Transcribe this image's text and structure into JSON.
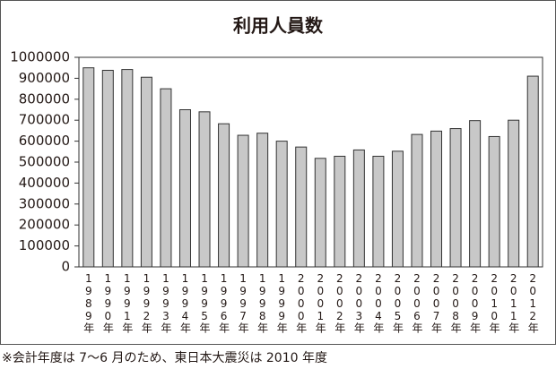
{
  "chart_data": {
    "type": "bar",
    "title": "利用人員数",
    "categories": [
      "1989年",
      "1990年",
      "1991年",
      "1992年",
      "1993年",
      "1994年",
      "1995年",
      "1996年",
      "1997年",
      "1998年",
      "1999年",
      "2000年",
      "2001年",
      "2002年",
      "2003年",
      "2004年",
      "2005年",
      "2006年",
      "2007年",
      "2008年",
      "2009年",
      "2010年",
      "2011年",
      "2012年"
    ],
    "values": [
      950000,
      938000,
      942000,
      905000,
      850000,
      750000,
      740000,
      683000,
      628000,
      638000,
      600000,
      572000,
      518000,
      528000,
      558000,
      528000,
      552000,
      632000,
      648000,
      660000,
      698000,
      622000,
      700000,
      910000
    ],
    "color": "#c8c8c8",
    "ylim": [
      0,
      1000000
    ],
    "yticks": [
      0,
      100000,
      200000,
      300000,
      400000,
      500000,
      600000,
      700000,
      800000,
      900000,
      1000000
    ],
    "grid": false,
    "note": "※会計年度は 7〜6 月のため、東日本大震災は 2010 年度"
  }
}
